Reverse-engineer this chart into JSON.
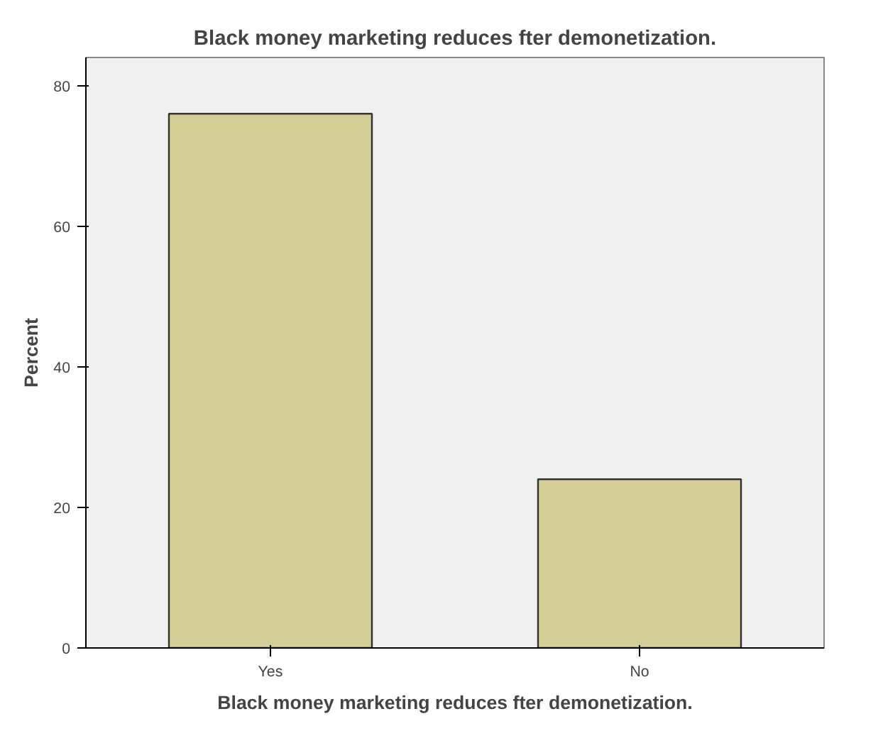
{
  "chart_data": {
    "type": "bar",
    "title": "Black money marketing reduces fter demonetization.",
    "xlabel": "Black money marketing reduces fter demonetization.",
    "ylabel": "Percent",
    "categories": [
      "Yes",
      "No"
    ],
    "values": [
      76,
      24
    ],
    "color": "#d3cf97",
    "ylim": [
      0,
      84
    ],
    "yticks": [
      0,
      20,
      40,
      60,
      80
    ],
    "grid": false
  }
}
